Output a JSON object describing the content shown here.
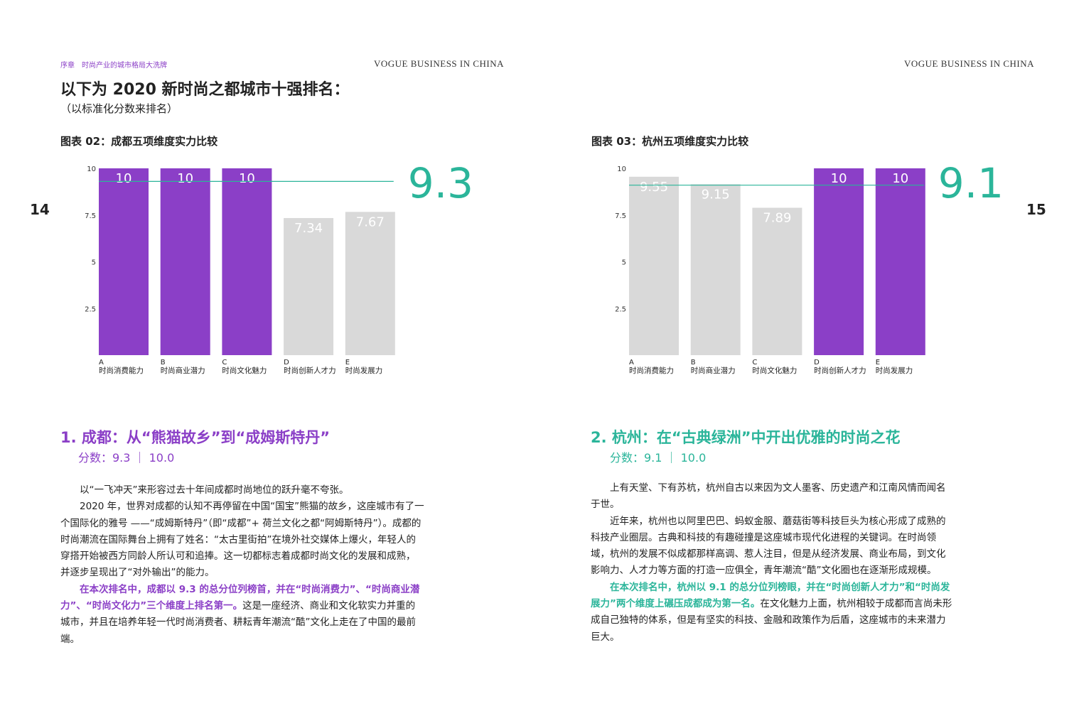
{
  "header": {
    "section": "序章　时尚产业的城市格局大洗牌",
    "brand_left": "VOGUE BUSINESS IN CHINA",
    "brand_right": "VOGUE BUSINESS IN CHINA"
  },
  "page_numbers": [
    14,
    15
  ],
  "title": "以下为 2020 新时尚之都城市十强排名：",
  "subtitle": "（以标准化分数来排名）",
  "charts": [
    {
      "type": "bar",
      "title": "图表 02：成都五项维度实力比较",
      "categories": [
        "A",
        "B",
        "C",
        "D",
        "E"
      ],
      "category_labels": [
        "时尚消费能力",
        "时尚商业潜力",
        "时尚文化魅力",
        "时尚创新人才力",
        "时尚发展力"
      ],
      "values": [
        10,
        10,
        10,
        7.34,
        7.67
      ],
      "colors": [
        "#8b3fc7",
        "#8b3fc7",
        "#8b3fc7",
        "#d9d9d9",
        "#d9d9d9"
      ],
      "score": 9.3,
      "score_color": "#2bb59a",
      "ylim": [
        0,
        10
      ],
      "yticks": [
        2.5,
        5,
        7.5,
        10
      ]
    },
    {
      "type": "bar",
      "title": "图表 03：杭州五项维度实力比较",
      "categories": [
        "A",
        "B",
        "C",
        "D",
        "E"
      ],
      "category_labels": [
        "时尚消费能力",
        "时尚商业潜力",
        "时尚文化魅力",
        "时尚创新人才力",
        "时尚发展力"
      ],
      "values": [
        9.55,
        9.15,
        7.89,
        10,
        10
      ],
      "colors": [
        "#d9d9d9",
        "#d9d9d9",
        "#d9d9d9",
        "#8b3fc7",
        "#8b3fc7"
      ],
      "score": 9.1,
      "score_color": "#2bb59a",
      "ylim": [
        0,
        10
      ],
      "yticks": [
        2.5,
        5,
        7.5,
        10
      ]
    }
  ],
  "sections": [
    {
      "heading": "1. 成都：从“熊猫故乡”到“成姆斯特丹”",
      "score_line": "分数：9.3 ｜ 10.0",
      "paragraphs": [
        {
          "text": "以“一飞冲天”来形容过去十年间成都时尚地位的跃升毫不夸张。"
        },
        {
          "text": "2020 年，世界对成都的认知不再停留在中国“国宝”熊猫的故乡，这座城市有了一个国际化的雅号 ——“成姆斯特丹”（即“成都”+ 荷兰文化之都“阿姆斯特丹”）。成都的时尚潮流在国际舞台上拥有了姓名：“太古里街拍”在境外社交媒体上爆火，年轻人的穿搭开始被西方同龄人所认可和追捧。这一切都标志着成都时尚文化的发展和成熟，并逐步呈现出了“对外输出”的能力。"
        },
        {
          "highlight": "在本次排名中，成都以 9.3 的总分位列榜首，并在“时尚消费力”、“时尚商业潜力”、“时尚文化力”三个维度上排名第一。",
          "text": "这是一座经济、商业和文化软实力并重的城市，并且在培养年轻一代时尚消费者、耕耘青年潮流“酷”文化上走在了中国的最前端。"
        }
      ]
    },
    {
      "heading": "2. 杭州：在“古典绿洲”中开出优雅的时尚之花",
      "score_line": "分数：9.1 ｜ 10.0",
      "paragraphs": [
        {
          "text": "上有天堂、下有苏杭，杭州自古以来因为文人墨客、历史遗产和江南风情而闻名于世。"
        },
        {
          "text": "近年来，杭州也以阿里巴巴、蚂蚁金服、蘑菇街等科技巨头为核心形成了成熟的科技产业圈层。古典和科技的有趣碰撞是这座城市现代化进程的关键词。在时尚领域，杭州的发展不似成都那样高调、惹人注目，但是从经济发展、商业布局，到文化影响力、人才力等方面的打造一应俱全，青年潮流“酷”文化圈也在逐渐形成规模。"
        },
        {
          "highlight": "在本次排名中，杭州以 9.1 的总分位列榜眼，并在“时尚创新人才力”和“时尚发展力”两个维度上碾压成都成为第一名。",
          "text": "在文化魅力上面，杭州相较于成都而言尚未形成自己独特的体系，但是有坚实的科技、金融和政策作为后盾，这座城市的未来潜力巨大。"
        }
      ]
    }
  ]
}
